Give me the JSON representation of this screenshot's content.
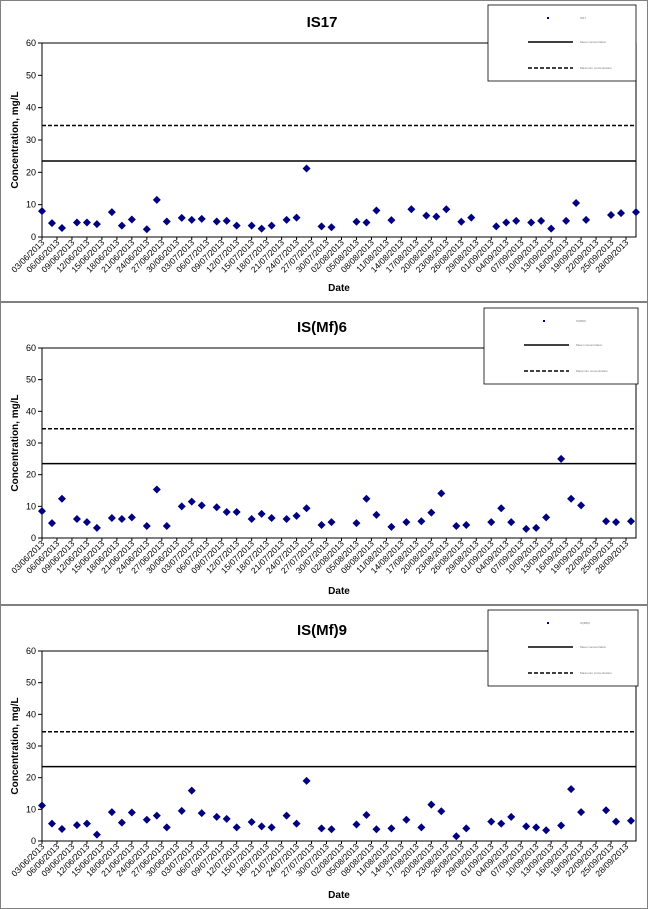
{
  "colors": {
    "marker": "#000080",
    "line": "#000000",
    "frame": "#808080"
  },
  "dates": [
    "03/06/2013",
    "06/06/2013",
    "09/06/2013",
    "12/06/2013",
    "15/06/2013",
    "18/06/2013",
    "21/06/2013",
    "24/06/2013",
    "27/06/2013",
    "30/06/2013",
    "03/07/2013",
    "06/07/2013",
    "09/07/2013",
    "12/07/2013",
    "15/07/2013",
    "18/07/2013",
    "21/07/2013",
    "24/07/2013",
    "27/07/2013",
    "30/07/2013",
    "02/08/2013",
    "05/08/2013",
    "08/08/2013",
    "11/08/2013",
    "14/08/2013",
    "17/08/2013",
    "20/08/2013",
    "23/08/2013",
    "26/08/2013",
    "29/08/2013",
    "01/09/2013",
    "04/09/2013",
    "07/09/2013",
    "10/09/2013",
    "13/09/2013",
    "16/09/2013",
    "19/09/2013",
    "22/09/2013",
    "25/09/2013",
    "28/09/2013"
  ],
  "chart_data": [
    {
      "type": "scatter",
      "title": "IS17",
      "xlabel": "Date",
      "ylabel": "Concentration, mg/L",
      "ylim": [
        0,
        60
      ],
      "yticks": [
        0,
        10,
        20,
        30,
        40,
        50,
        60
      ],
      "x_range": [
        "03/06/2013",
        "30/09/2013"
      ],
      "legend": {
        "placement": "top-right",
        "entries": [
          "IS17",
          "Mean concentration",
          "Maximum concentration"
        ]
      },
      "series": [
        {
          "name": "IS17",
          "marker": "diamond",
          "points": [
            [
              "03/06/2013",
              8
            ],
            [
              "05/06/2013",
              4.3
            ],
            [
              "07/06/2013",
              2.8
            ],
            [
              "10/06/2013",
              4.5
            ],
            [
              "12/06/2013",
              4.5
            ],
            [
              "14/06/2013",
              4
            ],
            [
              "17/06/2013",
              7.7
            ],
            [
              "19/06/2013",
              3.5
            ],
            [
              "21/06/2013",
              5.4
            ],
            [
              "24/06/2013",
              2.4
            ],
            [
              "26/06/2013",
              11.5
            ],
            [
              "28/06/2013",
              4.8
            ],
            [
              "01/07/2013",
              5.9
            ],
            [
              "03/07/2013",
              5.3
            ],
            [
              "05/07/2013",
              5.6
            ],
            [
              "08/07/2013",
              4.8
            ],
            [
              "10/07/2013",
              5
            ],
            [
              "12/07/2013",
              3.5
            ],
            [
              "15/07/2013",
              3.5
            ],
            [
              "17/07/2013",
              2.6
            ],
            [
              "19/07/2013",
              3.5
            ],
            [
              "22/07/2013",
              5.3
            ],
            [
              "24/07/2013",
              6
            ],
            [
              "26/07/2013",
              21.2
            ],
            [
              "29/07/2013",
              3.3
            ],
            [
              "31/07/2013",
              3
            ],
            [
              "05/08/2013",
              4.7
            ],
            [
              "07/08/2013",
              4.5
            ],
            [
              "09/08/2013",
              8.2
            ],
            [
              "12/08/2013",
              5.2
            ],
            [
              "16/08/2013",
              8.6
            ],
            [
              "19/08/2013",
              6.6
            ],
            [
              "21/08/2013",
              6.3
            ],
            [
              "23/08/2013",
              8.6
            ],
            [
              "26/08/2013",
              4.7
            ],
            [
              "28/08/2013",
              6
            ],
            [
              "02/09/2013",
              3.3
            ],
            [
              "04/09/2013",
              4.5
            ],
            [
              "06/09/2013",
              5
            ],
            [
              "09/09/2013",
              4.5
            ],
            [
              "11/09/2013",
              5
            ],
            [
              "13/09/2013",
              2.6
            ],
            [
              "16/09/2013",
              5
            ],
            [
              "18/09/2013",
              10.5
            ],
            [
              "20/09/2013",
              5.3
            ],
            [
              "25/09/2013",
              6.8
            ],
            [
              "27/09/2013",
              7.4
            ],
            [
              "30/09/2013",
              7.7
            ]
          ]
        },
        {
          "name": "Mean concentration",
          "style": "solid",
          "value": 23.5
        },
        {
          "name": "Maximum concentration",
          "style": "dashed",
          "value": 34.5
        }
      ]
    },
    {
      "type": "scatter",
      "title": "IS(Mf)6",
      "xlabel": "Date",
      "ylabel": "Concentration, mg/L",
      "ylim": [
        0,
        60
      ],
      "yticks": [
        0,
        10,
        20,
        30,
        40,
        50,
        60
      ],
      "x_range": [
        "03/06/2013",
        "30/09/2013"
      ],
      "legend": {
        "placement": "top-right",
        "entries": [
          "IS(Mf)6",
          "Mean concentration",
          "Maximum concentration"
        ]
      },
      "series": [
        {
          "name": "IS(Mf)6",
          "marker": "diamond",
          "points": [
            [
              "03/06/2013",
              8.5
            ],
            [
              "05/06/2013",
              4.7
            ],
            [
              "07/06/2013",
              12.4
            ],
            [
              "10/06/2013",
              6
            ],
            [
              "12/06/2013",
              5
            ],
            [
              "14/06/2013",
              3.2
            ],
            [
              "17/06/2013",
              6.3
            ],
            [
              "19/06/2013",
              6
            ],
            [
              "21/06/2013",
              6.5
            ],
            [
              "24/06/2013",
              3.8
            ],
            [
              "26/06/2013",
              15.3
            ],
            [
              "28/06/2013",
              3.8
            ],
            [
              "01/07/2013",
              10
            ],
            [
              "03/07/2013",
              11.5
            ],
            [
              "05/07/2013",
              10.3
            ],
            [
              "08/07/2013",
              9.7
            ],
            [
              "10/07/2013",
              8.2
            ],
            [
              "12/07/2013",
              8.2
            ],
            [
              "15/07/2013",
              6
            ],
            [
              "17/07/2013",
              7.6
            ],
            [
              "19/07/2013",
              6.3
            ],
            [
              "22/07/2013",
              6
            ],
            [
              "24/07/2013",
              7
            ],
            [
              "26/07/2013",
              9.4
            ],
            [
              "29/07/2013",
              4.1
            ],
            [
              "31/07/2013",
              5
            ],
            [
              "05/08/2013",
              4.7
            ],
            [
              "07/08/2013",
              12.4
            ],
            [
              "09/08/2013",
              7.3
            ],
            [
              "12/08/2013",
              3.5
            ],
            [
              "15/08/2013",
              5
            ],
            [
              "18/08/2013",
              5.3
            ],
            [
              "20/08/2013",
              8
            ],
            [
              "22/08/2013",
              14.1
            ],
            [
              "25/08/2013",
              3.8
            ],
            [
              "27/08/2013",
              4.1
            ],
            [
              "01/09/2013",
              5
            ],
            [
              "03/09/2013",
              9.4
            ],
            [
              "05/09/2013",
              5
            ],
            [
              "08/09/2013",
              2.9
            ],
            [
              "10/09/2013",
              3.2
            ],
            [
              "12/09/2013",
              6.5
            ],
            [
              "15/09/2013",
              25
            ],
            [
              "17/09/2013",
              12.4
            ],
            [
              "19/09/2013",
              10.3
            ],
            [
              "24/09/2013",
              5.3
            ],
            [
              "26/09/2013",
              5
            ],
            [
              "29/09/2013",
              5.3
            ]
          ]
        },
        {
          "name": "Mean concentration",
          "style": "solid",
          "value": 23.5
        },
        {
          "name": "Maximum concentration",
          "style": "dashed",
          "value": 34.5
        }
      ]
    },
    {
      "type": "scatter",
      "title": "IS(Mf)9",
      "xlabel": "Date",
      "ylabel": "Concentration, mg/L",
      "ylim": [
        0,
        60
      ],
      "yticks": [
        0,
        10,
        20,
        30,
        40,
        50,
        60
      ],
      "x_range": [
        "03/06/2013",
        "30/09/2013"
      ],
      "legend": {
        "placement": "top-right",
        "entries": [
          "IS(Mf)9",
          "Mean concentration",
          "Maximum concentration"
        ]
      },
      "series": [
        {
          "name": "IS(Mf)9",
          "marker": "diamond",
          "points": [
            [
              "03/06/2013",
              11.2
            ],
            [
              "05/06/2013",
              5.5
            ],
            [
              "07/06/2013",
              3.8
            ],
            [
              "10/06/2013",
              5
            ],
            [
              "12/06/2013",
              5.5
            ],
            [
              "14/06/2013",
              2
            ],
            [
              "17/06/2013",
              9.1
            ],
            [
              "19/06/2013",
              5.8
            ],
            [
              "21/06/2013",
              9
            ],
            [
              "24/06/2013",
              6.7
            ],
            [
              "26/06/2013",
              8
            ],
            [
              "28/06/2013",
              4.3
            ],
            [
              "01/07/2013",
              9.5
            ],
            [
              "03/07/2013",
              15.9
            ],
            [
              "05/07/2013",
              8.8
            ],
            [
              "08/07/2013",
              7.6
            ],
            [
              "10/07/2013",
              7
            ],
            [
              "12/07/2013",
              4.3
            ],
            [
              "15/07/2013",
              6
            ],
            [
              "17/07/2013",
              4.6
            ],
            [
              "19/07/2013",
              4.3
            ],
            [
              "22/07/2013",
              8
            ],
            [
              "24/07/2013",
              5.5
            ],
            [
              "26/07/2013",
              19
            ],
            [
              "29/07/2013",
              4
            ],
            [
              "31/07/2013",
              3.7
            ],
            [
              "05/08/2013",
              5.2
            ],
            [
              "07/08/2013",
              8.2
            ],
            [
              "09/08/2013",
              3.7
            ],
            [
              "12/08/2013",
              4
            ],
            [
              "15/08/2013",
              6.7
            ],
            [
              "18/08/2013",
              4.3
            ],
            [
              "20/08/2013",
              11.5
            ],
            [
              "22/08/2013",
              9.4
            ],
            [
              "25/08/2013",
              1.5
            ],
            [
              "27/08/2013",
              4
            ],
            [
              "01/09/2013",
              6.1
            ],
            [
              "03/09/2013",
              5.5
            ],
            [
              "05/09/2013",
              7.6
            ],
            [
              "08/09/2013",
              4.6
            ],
            [
              "10/09/2013",
              4.3
            ],
            [
              "12/09/2013",
              3.4
            ],
            [
              "15/09/2013",
              4.9
            ],
            [
              "17/09/2013",
              16.4
            ],
            [
              "19/09/2013",
              9.1
            ],
            [
              "24/09/2013",
              9.7
            ],
            [
              "26/09/2013",
              6.1
            ],
            [
              "29/09/2013",
              6.4
            ]
          ]
        },
        {
          "name": "Mean concentration",
          "style": "solid",
          "value": 23.5
        },
        {
          "name": "Maximum concentration",
          "style": "dashed",
          "value": 34.5
        }
      ]
    }
  ]
}
